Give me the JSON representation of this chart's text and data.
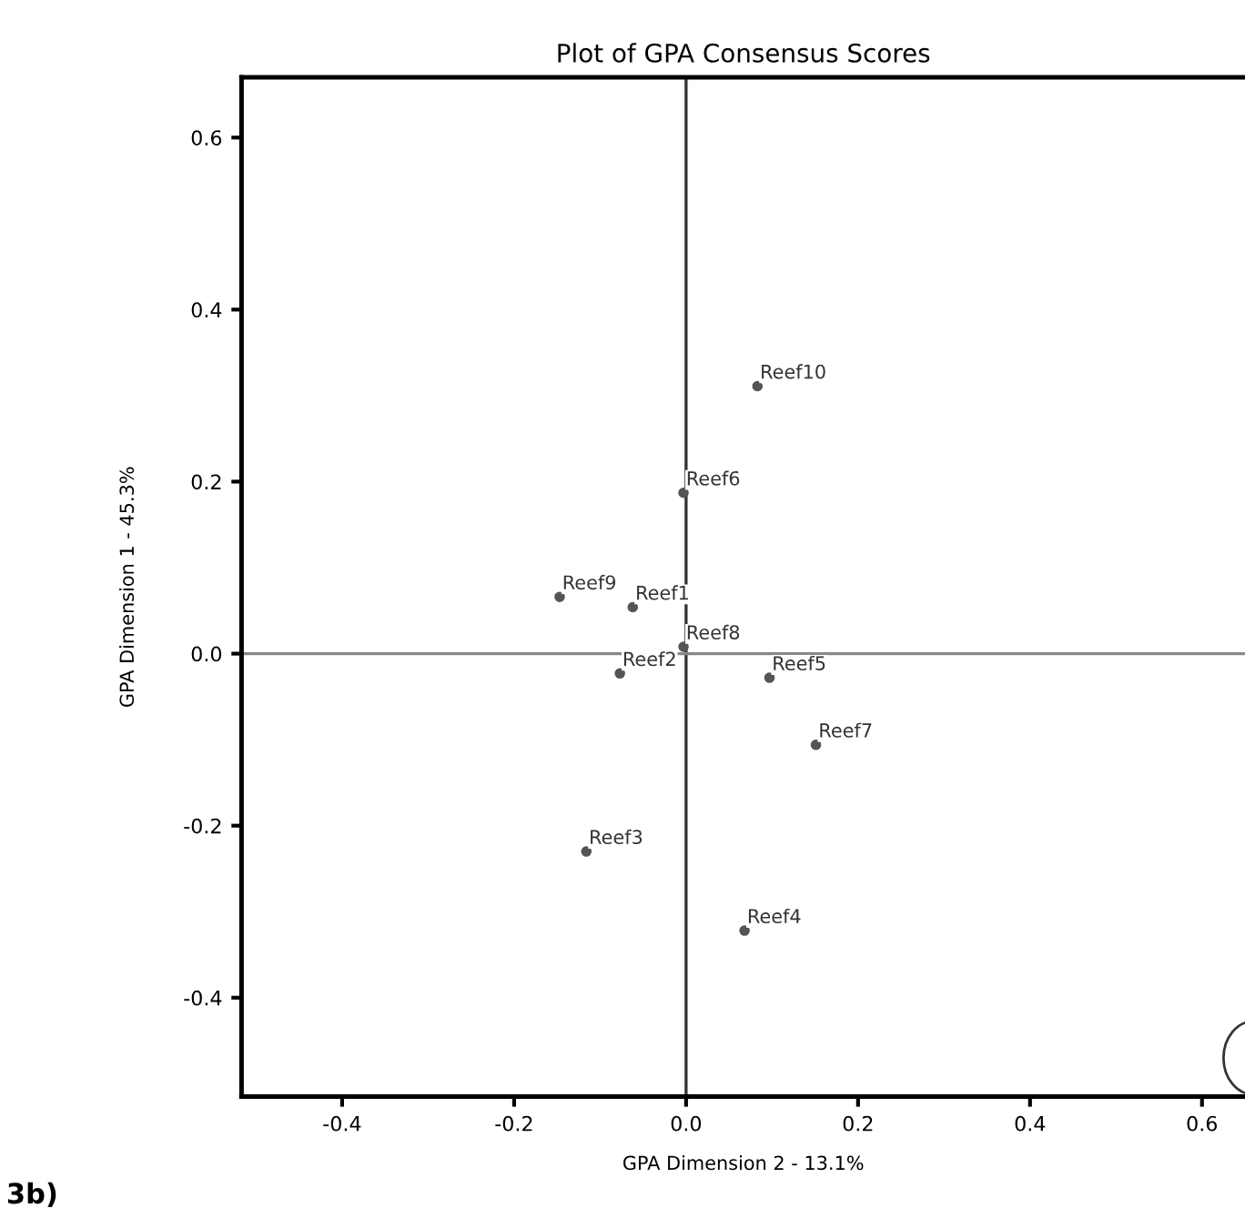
{
  "chart_data": {
    "type": "scatter",
    "title": "Plot of GPA Consensus Scores",
    "xlabel": "GPA Dimension 2 - 13.1%",
    "ylabel": "GPA Dimension 1 - 45.3%",
    "series": [
      {
        "color": "#555555",
        "x": [
          0.083,
          -0.003,
          -0.147,
          -0.062,
          -0.003,
          -0.077,
          0.097,
          0.151,
          -0.116,
          0.068
        ],
        "values": [
          0.311,
          0.187,
          0.066,
          0.054,
          0.008,
          -0.023,
          -0.028,
          -0.106,
          -0.23,
          -0.322
        ]
      }
    ],
    "marker": "circle",
    "grid": false,
    "legend": false,
    "xlim": [
      -0.517,
      0.65
    ],
    "ylim": [
      -0.515,
      0.67
    ],
    "xticks": [
      {
        "value": -0.4,
        "label": "-0.4"
      },
      {
        "value": -0.2,
        "label": "-0.2"
      },
      {
        "value": 0.0,
        "label": "0.0"
      },
      {
        "value": 0.2,
        "label": "0.2"
      },
      {
        "value": 0.4,
        "label": "0.4"
      },
      {
        "value": 0.6,
        "label": "0.6"
      }
    ],
    "yticks": [
      {
        "value": -0.4,
        "label": "-0.4"
      },
      {
        "value": -0.2,
        "label": "-0.2"
      },
      {
        "value": 0.0,
        "label": "0.0"
      },
      {
        "value": 0.2,
        "label": "0.2"
      },
      {
        "value": 0.4,
        "label": "0.4"
      },
      {
        "value": 0.6,
        "label": "0.6"
      }
    ],
    "ref_lines": [
      {
        "axis": "x",
        "value": 0,
        "color": "#333333"
      },
      {
        "axis": "y",
        "value": 0,
        "color": "#888888"
      }
    ],
    "annotations": [
      {
        "text": "Reef10",
        "x": 0.083,
        "y": 0.311
      },
      {
        "text": "Reef6",
        "x": -0.003,
        "y": 0.187
      },
      {
        "text": "Reef9",
        "x": -0.147,
        "y": 0.066
      },
      {
        "text": "Reef1",
        "x": -0.062,
        "y": 0.054
      },
      {
        "text": "Reef8",
        "x": -0.003,
        "y": 0.008
      },
      {
        "text": "Reef2",
        "x": -0.077,
        "y": -0.023
      },
      {
        "text": "Reef5",
        "x": 0.097,
        "y": -0.028
      },
      {
        "text": "Reef7",
        "x": 0.151,
        "y": -0.106
      },
      {
        "text": "Reef3",
        "x": -0.116,
        "y": -0.23
      },
      {
        "text": "Reef4",
        "x": 0.068,
        "y": -0.322
      },
      "3b)"
    ]
  }
}
